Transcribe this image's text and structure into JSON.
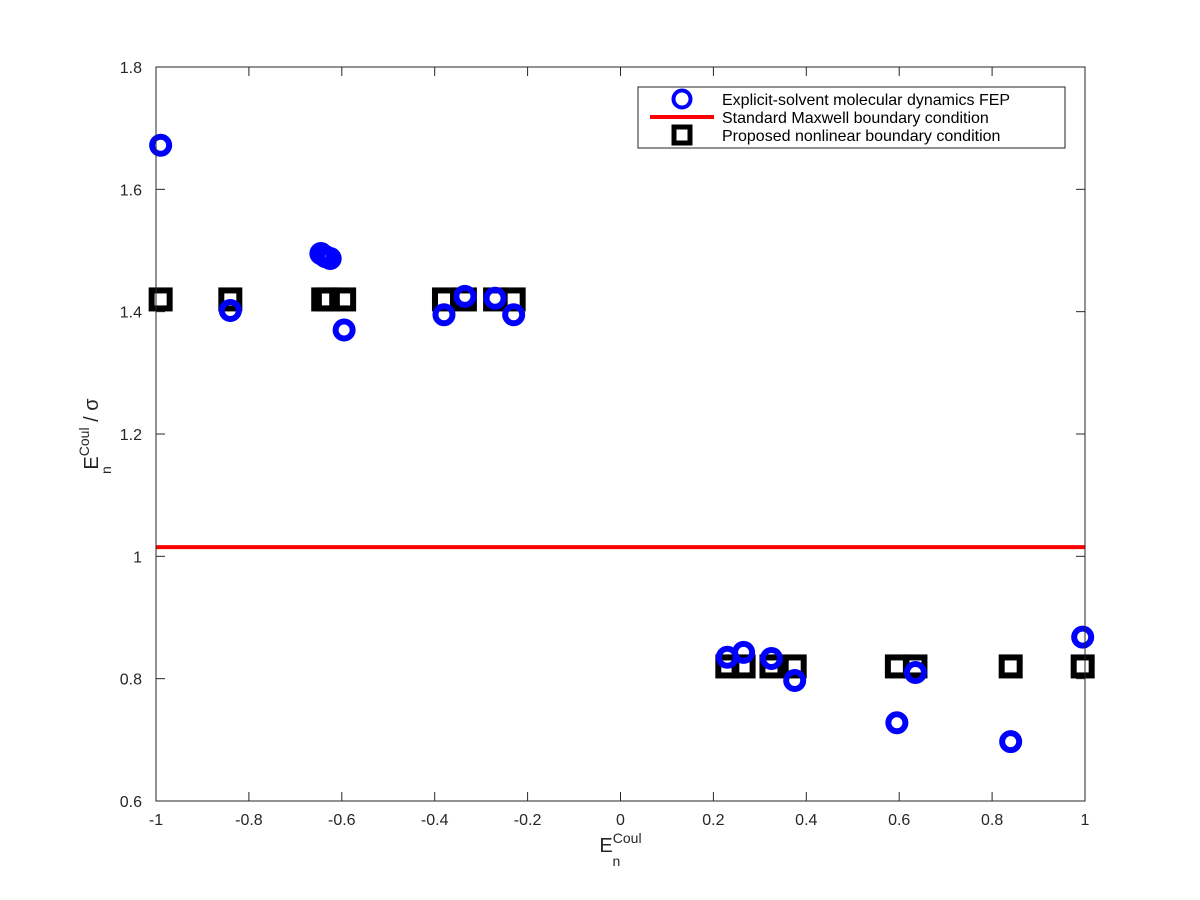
{
  "chart_data": {
    "type": "scatter",
    "title": "",
    "xlabel": {
      "main": "E",
      "sub": "n",
      "sup": "Coul",
      "suffix": ""
    },
    "ylabel": {
      "main": "E",
      "sub": "n",
      "sup": "Coul",
      "suffix": " / σ"
    },
    "xlim": [
      -1,
      1
    ],
    "ylim": [
      0.6,
      1.8
    ],
    "xticks": [
      -1,
      -0.8,
      -0.6,
      -0.4,
      -0.2,
      0,
      0.2,
      0.4,
      0.6,
      0.8,
      1
    ],
    "xtick_labels": [
      "-1",
      "-0.8",
      "-0.6",
      "-0.4",
      "-0.2",
      "0",
      "0.2",
      "0.4",
      "0.6",
      "0.8",
      "1"
    ],
    "yticks": [
      0.6,
      0.8,
      1.0,
      1.2,
      1.4,
      1.6,
      1.8
    ],
    "ytick_labels": [
      "0.6",
      "0.8",
      "1",
      "1.2",
      "1.4",
      "1.6",
      "1.8"
    ],
    "grid": false,
    "legend_position": "top-right",
    "series": [
      {
        "name": "Explicit-solvent molecular dynamics FEP",
        "marker": "circle",
        "color": "#0000ff",
        "x": [
          -0.99,
          -0.84,
          -0.645,
          -0.635,
          -0.625,
          -0.595,
          -0.38,
          -0.335,
          -0.27,
          -0.23,
          0.23,
          0.265,
          0.325,
          0.375,
          0.595,
          0.635,
          0.84,
          0.995
        ],
        "y": [
          1.672,
          1.402,
          1.495,
          1.49,
          1.487,
          1.37,
          1.395,
          1.425,
          1.422,
          1.395,
          0.835,
          0.843,
          0.833,
          0.797,
          0.728,
          0.81,
          0.697,
          0.868
        ]
      },
      {
        "name": "Standard Maxwell boundary condition",
        "marker": "line",
        "color": "#ff0000",
        "x": [
          -1,
          1
        ],
        "y": [
          1.015,
          1.015
        ]
      },
      {
        "name": "Proposed nonlinear boundary condition",
        "marker": "square",
        "color": "#000000",
        "x": [
          -0.99,
          -0.84,
          -0.64,
          -0.63,
          -0.595,
          -0.38,
          -0.335,
          -0.27,
          -0.23,
          0.23,
          0.265,
          0.325,
          0.375,
          0.595,
          0.635,
          0.84,
          0.995
        ],
        "y": [
          1.42,
          1.42,
          1.42,
          1.42,
          1.42,
          1.42,
          1.42,
          1.42,
          1.42,
          0.82,
          0.82,
          0.82,
          0.82,
          0.82,
          0.82,
          0.82,
          0.82
        ]
      }
    ]
  }
}
